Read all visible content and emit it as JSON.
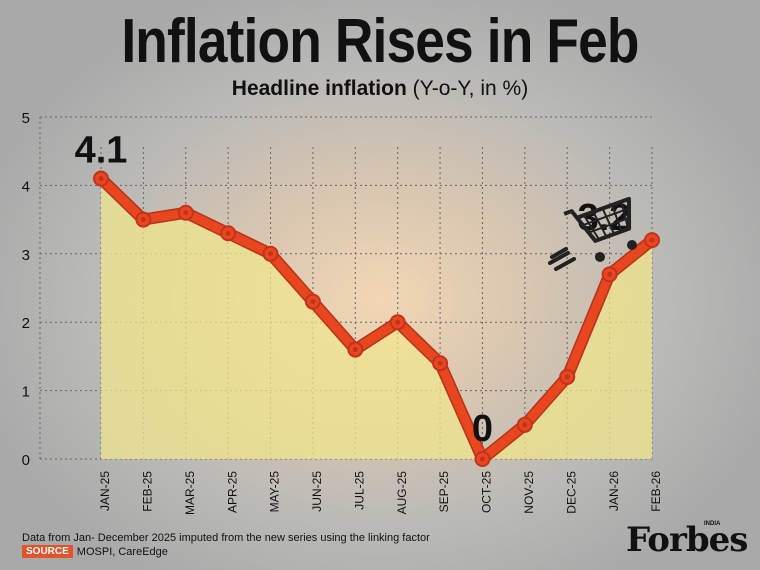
{
  "title": "Inflation Rises in Feb",
  "subtitle_bold": "Headline inflation",
  "subtitle_rest": "(Y-o-Y, in %)",
  "footnote": "Data from Jan- December 2025 imputed from the new series using the linking factor",
  "source_label": "SOURCE",
  "source_text": "MOSPI, CareEdge",
  "brand": "Forbes",
  "brand_edition": "INDIA",
  "colors": {
    "line": "#e8461e",
    "line_outline": "#b5331a",
    "marker": "#c3321c",
    "area": "#f0e68c"
  },
  "chart_data": {
    "type": "line",
    "title": "Inflation Rises in Feb",
    "subtitle": "Headline inflation (Y-o-Y, in %)",
    "categories": [
      "JAN-25",
      "FEB-25",
      "MAR-25",
      "APR-25",
      "MAY-25",
      "JUN-25",
      "JUL-25",
      "AUG-25",
      "SEP-25",
      "OCT-25",
      "NOV-25",
      "DEC-25",
      "JAN-26",
      "FEB-26"
    ],
    "series": [
      {
        "values": [
          4.1,
          3.5,
          3.6,
          3.3,
          3.0,
          2.3,
          1.6,
          2.0,
          1.4,
          0.0,
          0.5,
          1.2,
          2.7,
          3.2
        ]
      }
    ],
    "ylim": [
      0,
      5
    ],
    "yticks": [
      0,
      1,
      2,
      3,
      4,
      5
    ],
    "grid": true,
    "annotations": [
      {
        "label": "4.1",
        "category": "JAN-25"
      },
      {
        "label": "0",
        "category": "OCT-25"
      },
      {
        "label": "3.2",
        "category": "FEB-26"
      }
    ],
    "icon": "shopping-cart-icon"
  }
}
